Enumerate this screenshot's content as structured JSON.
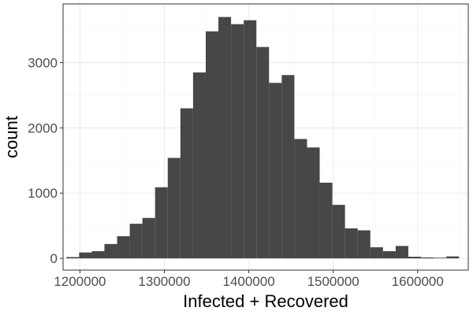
{
  "chart_data": {
    "type": "bar",
    "subtype": "histogram",
    "title": "",
    "xlabel": "Infected + Recovered",
    "ylabel": "count",
    "xlim": [
      1180000,
      1660000
    ],
    "ylim": [
      -180,
      3900
    ],
    "x_ticks": [
      1200000,
      1300000,
      1400000,
      1500000,
      1600000
    ],
    "x_tick_labels": [
      "1200000",
      "1300000",
      "1400000",
      "1500000",
      "1600000"
    ],
    "y_ticks": [
      0,
      1000,
      2000,
      3000
    ],
    "y_tick_labels": [
      "0",
      "1000",
      "2000",
      "3000"
    ],
    "grid": true,
    "legend": "none",
    "bin_width": 15000,
    "bins": [
      {
        "x0": 1184000,
        "x1": 1199000,
        "count": 20
      },
      {
        "x0": 1199000,
        "x1": 1214000,
        "count": 90
      },
      {
        "x0": 1214000,
        "x1": 1229000,
        "count": 110
      },
      {
        "x0": 1229000,
        "x1": 1244000,
        "count": 220
      },
      {
        "x0": 1244000,
        "x1": 1259000,
        "count": 340
      },
      {
        "x0": 1259000,
        "x1": 1274000,
        "count": 530
      },
      {
        "x0": 1274000,
        "x1": 1289000,
        "count": 620
      },
      {
        "x0": 1289000,
        "x1": 1304000,
        "count": 1090
      },
      {
        "x0": 1304000,
        "x1": 1319000,
        "count": 1540
      },
      {
        "x0": 1319000,
        "x1": 1334000,
        "count": 2300
      },
      {
        "x0": 1334000,
        "x1": 1349000,
        "count": 2850
      },
      {
        "x0": 1349000,
        "x1": 1364000,
        "count": 3480
      },
      {
        "x0": 1364000,
        "x1": 1379000,
        "count": 3700
      },
      {
        "x0": 1379000,
        "x1": 1394000,
        "count": 3590
      },
      {
        "x0": 1394000,
        "x1": 1409000,
        "count": 3650
      },
      {
        "x0": 1409000,
        "x1": 1424000,
        "count": 3240
      },
      {
        "x0": 1424000,
        "x1": 1439000,
        "count": 2690
      },
      {
        "x0": 1439000,
        "x1": 1454000,
        "count": 2810
      },
      {
        "x0": 1454000,
        "x1": 1469000,
        "count": 1830
      },
      {
        "x0": 1469000,
        "x1": 1484000,
        "count": 1700
      },
      {
        "x0": 1484000,
        "x1": 1499000,
        "count": 1160
      },
      {
        "x0": 1499000,
        "x1": 1514000,
        "count": 820
      },
      {
        "x0": 1514000,
        "x1": 1529000,
        "count": 460
      },
      {
        "x0": 1529000,
        "x1": 1544000,
        "count": 430
      },
      {
        "x0": 1544000,
        "x1": 1559000,
        "count": 170
      },
      {
        "x0": 1559000,
        "x1": 1574000,
        "count": 110
      },
      {
        "x0": 1574000,
        "x1": 1589000,
        "count": 190
      },
      {
        "x0": 1589000,
        "x1": 1604000,
        "count": 25
      },
      {
        "x0": 1604000,
        "x1": 1619000,
        "count": 15
      },
      {
        "x0": 1619000,
        "x1": 1634000,
        "count": 10
      },
      {
        "x0": 1634000,
        "x1": 1649000,
        "count": 30
      }
    ],
    "colors": {
      "bar": "#474747",
      "panel_border": "#333333",
      "grid_major": "#ebebeb",
      "grid_minor": "#f5f5f5",
      "tick_mark": "#333333",
      "tick_label": "#4d4d4d",
      "axis_title": "#000000",
      "background": "#ffffff"
    }
  }
}
